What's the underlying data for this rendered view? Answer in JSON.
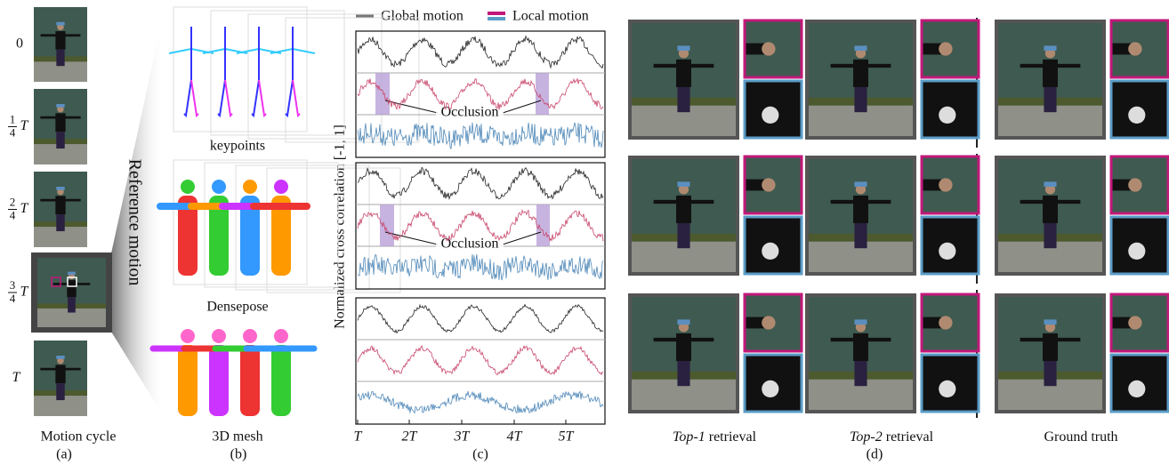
{
  "panel_a": {
    "cycle_labels": [
      {
        "text": "0"
      },
      {
        "num": "1",
        "den": "4",
        "var": "T"
      },
      {
        "num": "2",
        "den": "4",
        "var": "T"
      },
      {
        "num": "3",
        "den": "4",
        "var": "T"
      },
      {
        "var": "T"
      }
    ],
    "caption": "Motion cycle",
    "label": "(a)"
  },
  "panel_b": {
    "side_title": "Reference motion",
    "captions": [
      "keypoints",
      "Densepose",
      "3D mesh"
    ],
    "label": "(b)"
  },
  "panel_c": {
    "legend": [
      "Global motion",
      "Local motion"
    ],
    "y_label": "Normalized cross correlation [-1, 1]",
    "annotations": [
      "Occlusion",
      "Occlusion"
    ],
    "x_ticks": [
      "T",
      "2T",
      "3T",
      "4T",
      "5T"
    ],
    "label": "(c)"
  },
  "panel_d": {
    "columns": [
      {
        "emph": "Top-1",
        "rest": "retrieval"
      },
      {
        "emph": "Top-2",
        "rest": "retrieval"
      },
      {
        "emph": "",
        "rest": "Ground truth"
      }
    ],
    "label": "(d)"
  }
}
